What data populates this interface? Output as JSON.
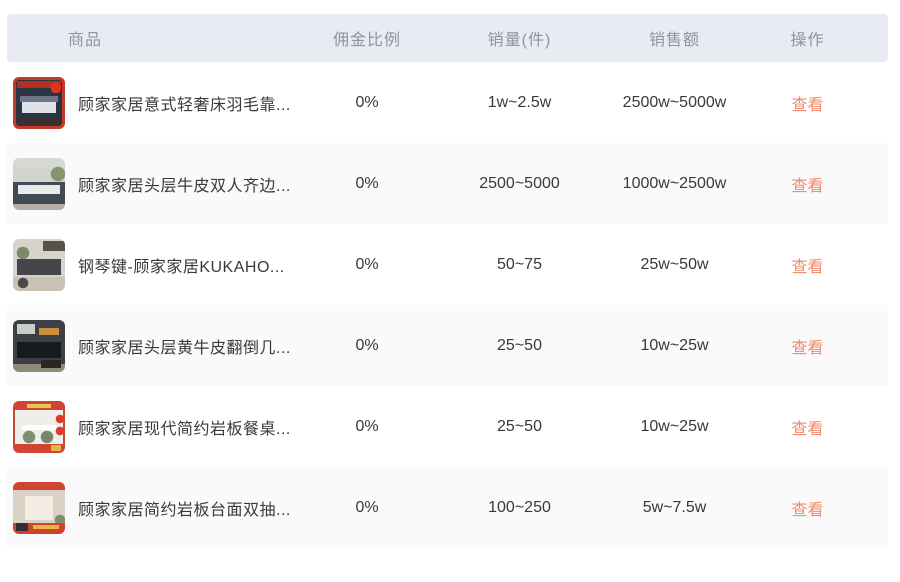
{
  "table": {
    "columns": [
      "商品",
      "佣金比例",
      "销量(件)",
      "销售额",
      "操作"
    ],
    "rows": [
      {
        "name": "顾家家居意式轻奢床羽毛靠...",
        "commission": "0%",
        "sales": "1w~2.5w",
        "revenue": "2500w~5000w",
        "action": "查看",
        "thumb": "bed-mattress-red-promo-photo"
      },
      {
        "name": "顾家家居头层牛皮双人齐边...",
        "commission": "0%",
        "sales": "2500~5000",
        "revenue": "1000w~2500w",
        "action": "查看",
        "thumb": "bedroom-bed-photo"
      },
      {
        "name": "钢琴键-顾家家居KUKAHO...",
        "commission": "0%",
        "sales": "50~75",
        "revenue": "25w~50w",
        "action": "查看",
        "thumb": "gray-sofa-living-room-photo"
      },
      {
        "name": "顾家家居头层黄牛皮翻倒几...",
        "commission": "0%",
        "sales": "25~50",
        "revenue": "10w~25w",
        "action": "查看",
        "thumb": "dark-leather-sofa-photo"
      },
      {
        "name": "顾家家居现代简约岩板餐桌...",
        "commission": "0%",
        "sales": "25~50",
        "revenue": "10w~25w",
        "action": "查看",
        "thumb": "dining-table-red-promo-photo"
      },
      {
        "name": "顾家家居简约岩板台面双抽...",
        "commission": "0%",
        "sales": "100~250",
        "revenue": "5w~7.5w",
        "action": "查看",
        "thumb": "nightstand-red-promo-photo"
      }
    ]
  },
  "colors": {
    "header_bg": "#e9ebf2",
    "header_text": "#8d94a6",
    "body_text": "#383838",
    "row_alt_bg": "#fafafa",
    "link": "#f08a70"
  }
}
